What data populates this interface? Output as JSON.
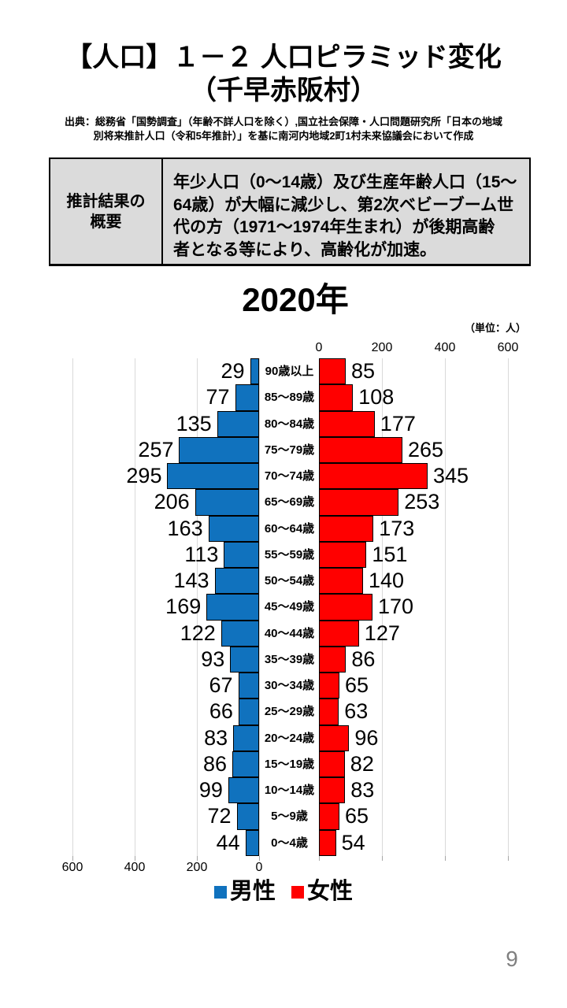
{
  "page": {
    "number": "9"
  },
  "header": {
    "title_line1": "【人口】１－２ 人口ピラミッド変化",
    "title_line2": "（千早赤阪村）",
    "source_line1": "出典：総務省「国勢調査」（年齢不詳人口を除く）,国立社会保障・人口問題研究所「日本の地域",
    "source_line2": "別将来推計人口（令和5年推計）」を基に南河内地域2町1村未来協議会において作成"
  },
  "summary": {
    "header_line1": "推計結果の",
    "header_line2": "概要",
    "body_lines": [
      "年少人口（0～14歳）及び生産年齢人口（15～",
      "64歳）が大幅に減少し、第2次ベビーブーム世",
      "代の方（1971～1974年生まれ）が後期高齢",
      "者となる等により、高齢化が加速。"
    ]
  },
  "chart_data": {
    "type": "bar",
    "variant": "population-pyramid",
    "title": "2020年",
    "unit_label": "（単位：人）",
    "categories": [
      "90歳以上",
      "85～89歳",
      "80～84歳",
      "75～79歳",
      "70～74歳",
      "65～69歳",
      "60～64歳",
      "55～59歳",
      "50～54歳",
      "45～49歳",
      "40～44歳",
      "35～39歳",
      "30～34歳",
      "25～29歳",
      "20～24歳",
      "15～19歳",
      "10～14歳",
      "5～9歳",
      "0～4歳"
    ],
    "series": [
      {
        "name": "男性",
        "side": "left",
        "color": "#1072be",
        "values": [
          29,
          77,
          135,
          257,
          295,
          206,
          163,
          113,
          143,
          169,
          122,
          93,
          67,
          66,
          83,
          86,
          99,
          72,
          44
        ]
      },
      {
        "name": "女性",
        "side": "right",
        "color": "#ff0000",
        "values": [
          85,
          108,
          177,
          265,
          345,
          253,
          173,
          151,
          140,
          170,
          127,
          86,
          65,
          63,
          96,
          82,
          83,
          65,
          54
        ]
      }
    ],
    "axis_ticks": [
      0,
      200,
      400,
      600
    ],
    "xlim_each_side": [
      0,
      700
    ],
    "grid": true,
    "gridline_color": "#d9d9d9",
    "legend_position": "bottom"
  }
}
